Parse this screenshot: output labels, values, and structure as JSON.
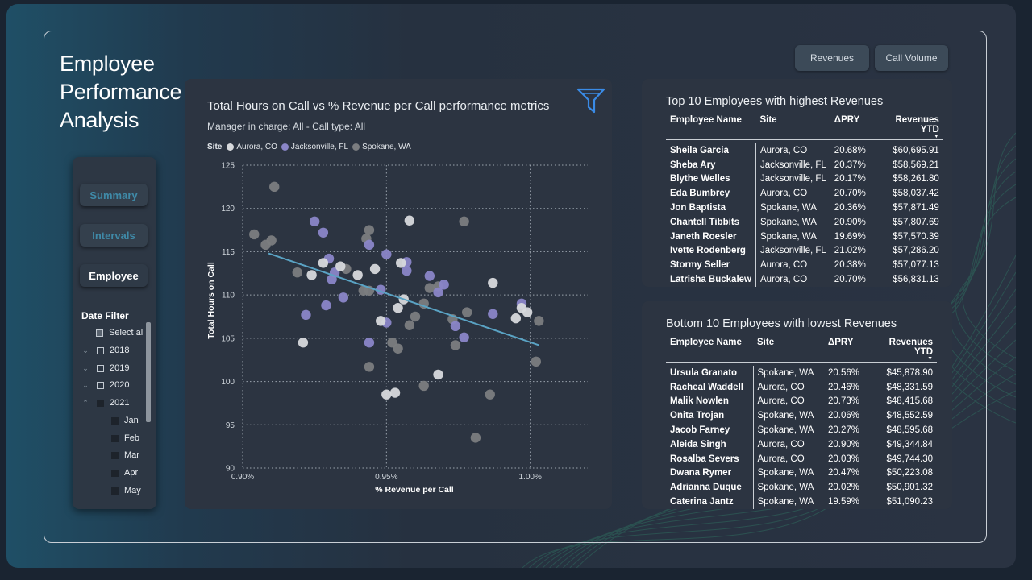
{
  "page": {
    "title_lines": [
      "Employee",
      "Performance",
      "Analysis"
    ]
  },
  "toolbar": {
    "revenues_label": "Revenues",
    "call_volume_label": "Call Volume"
  },
  "nav": {
    "summary_label": "Summary",
    "intervals_label": "Intervals",
    "employee_label": "Employee"
  },
  "date_filter": {
    "title": "Date Filter",
    "select_all": "Select all",
    "years": [
      "2018",
      "2019",
      "2020",
      "2021"
    ],
    "months": [
      "Jan",
      "Feb",
      "Mar",
      "Apr",
      "May"
    ]
  },
  "chart": {
    "title": "Total Hours on Call vs % Revenue per Call performance metrics",
    "subtitle": "Manager in charge: All - Call type: All",
    "legend_title": "Site",
    "icons": {
      "filter": "funnel-icon"
    }
  },
  "chart_data": {
    "type": "scatter",
    "xlabel": "% Revenue per Call",
    "ylabel": "Total Hours on Call",
    "xlim": [
      0.9,
      1.02
    ],
    "ylim": [
      90,
      125
    ],
    "x_ticks": [
      0.9,
      0.95,
      1.0
    ],
    "x_tick_labels": [
      "0.90%",
      "0.95%",
      "1.00%"
    ],
    "y_ticks": [
      90,
      95,
      100,
      105,
      110,
      115,
      120,
      125
    ],
    "y_tick_labels": [
      "90",
      "95",
      "100",
      "105",
      "110",
      "115",
      "120",
      "125"
    ],
    "grid": true,
    "legend_position": "top-left",
    "trend_line": {
      "x": [
        0.909,
        1.003
      ],
      "y": [
        114.8,
        104.2
      ],
      "color": "#5aa3c4"
    },
    "series": [
      {
        "name": "Aurora, CO",
        "color": "#d7d9dc",
        "points": [
          [
            0.924,
            112.3
          ],
          [
            0.928,
            113.7
          ],
          [
            0.934,
            113.3
          ],
          [
            0.94,
            112.3
          ],
          [
            0.946,
            113.0
          ],
          [
            0.948,
            107.0
          ],
          [
            0.954,
            108.5
          ],
          [
            0.956,
            109.5
          ],
          [
            0.955,
            113.7
          ],
          [
            0.958,
            118.6
          ],
          [
            0.921,
            104.5
          ],
          [
            0.95,
            98.5
          ],
          [
            0.953,
            98.7
          ],
          [
            0.968,
            100.8
          ],
          [
            0.987,
            111.4
          ],
          [
            0.995,
            107.3
          ],
          [
            0.997,
            108.5
          ],
          [
            0.999,
            108.0
          ]
        ]
      },
      {
        "name": "Jacksonville, FL",
        "color": "#8a86c8",
        "points": [
          [
            0.925,
            118.5
          ],
          [
            0.928,
            117.2
          ],
          [
            0.93,
            114.2
          ],
          [
            0.931,
            111.8
          ],
          [
            0.932,
            112.6
          ],
          [
            0.929,
            108.8
          ],
          [
            0.935,
            109.7
          ],
          [
            0.944,
            115.8
          ],
          [
            0.948,
            110.6
          ],
          [
            0.95,
            114.7
          ],
          [
            0.957,
            113.8
          ],
          [
            0.957,
            112.8
          ],
          [
            0.95,
            106.8
          ],
          [
            0.944,
            104.5
          ],
          [
            0.965,
            112.2
          ],
          [
            0.968,
            110.3
          ],
          [
            0.97,
            111.2
          ],
          [
            0.974,
            106.4
          ],
          [
            0.977,
            105.1
          ],
          [
            0.987,
            107.8
          ],
          [
            0.997,
            109.0
          ],
          [
            0.922,
            107.7
          ]
        ]
      },
      {
        "name": "Spokane, WA",
        "color": "#7b7d80",
        "points": [
          [
            0.904,
            117.0
          ],
          [
            0.911,
            122.5
          ],
          [
            0.908,
            115.8
          ],
          [
            0.91,
            116.3
          ],
          [
            0.919,
            112.6
          ],
          [
            0.936,
            113.0
          ],
          [
            0.944,
            117.5
          ],
          [
            0.943,
            116.5
          ],
          [
            0.944,
            110.5
          ],
          [
            0.942,
            110.5
          ],
          [
            0.952,
            104.5
          ],
          [
            0.954,
            103.8
          ],
          [
            0.958,
            106.5
          ],
          [
            0.96,
            107.5
          ],
          [
            0.963,
            109.0
          ],
          [
            0.965,
            110.8
          ],
          [
            0.968,
            111.0
          ],
          [
            0.973,
            107.2
          ],
          [
            0.977,
            118.5
          ],
          [
            0.978,
            108.0
          ],
          [
            0.974,
            104.2
          ],
          [
            0.944,
            101.7
          ],
          [
            0.963,
            99.5
          ],
          [
            0.986,
            98.5
          ],
          [
            0.981,
            93.5
          ],
          [
            1.002,
            102.3
          ],
          [
            1.003,
            107.0
          ]
        ]
      }
    ]
  },
  "top_table": {
    "title": "Top 10 Employees with highest Revenues",
    "columns": [
      "Employee Name",
      "Site",
      "ΔPRY",
      "Revenues YTD"
    ],
    "rows": [
      [
        "Sheila Garcia",
        "Aurora, CO",
        "20.68%",
        "$60,695.91"
      ],
      [
        "Sheba Ary",
        "Jacksonville, FL",
        "20.37%",
        "$58,569.21"
      ],
      [
        "Blythe Welles",
        "Jacksonville, FL",
        "20.17%",
        "$58,261.80"
      ],
      [
        "Eda Bumbrey",
        "Aurora, CO",
        "20.70%",
        "$58,037.42"
      ],
      [
        "Jon Baptista",
        "Spokane, WA",
        "20.36%",
        "$57,871.49"
      ],
      [
        "Chantell Tibbits",
        "Spokane, WA",
        "20.90%",
        "$57,807.69"
      ],
      [
        "Janeth Roesler",
        "Spokane, WA",
        "19.69%",
        "$57,570.39"
      ],
      [
        "Ivette Rodenberg",
        "Jacksonville, FL",
        "21.02%",
        "$57,286.20"
      ],
      [
        "Stormy Seller",
        "Aurora, CO",
        "20.38%",
        "$57,077.13"
      ],
      [
        "Latrisha Buckalew",
        "Aurora, CO",
        "20.70%",
        "$56,831.13"
      ]
    ]
  },
  "bottom_table": {
    "title": "Bottom 10 Employees with lowest Revenues",
    "columns": [
      "Employee Name",
      "Site",
      "ΔPRY",
      "Revenues YTD"
    ],
    "rows": [
      [
        "Ursula Granato",
        "Spokane, WA",
        "20.56%",
        "$45,878.90"
      ],
      [
        "Racheal Waddell",
        "Aurora, CO",
        "20.46%",
        "$48,331.59"
      ],
      [
        "Malik Nowlen",
        "Aurora, CO",
        "20.73%",
        "$48,415.68"
      ],
      [
        "Onita Trojan",
        "Spokane, WA",
        "20.06%",
        "$48,552.59"
      ],
      [
        "Jacob Farney",
        "Spokane, WA",
        "20.27%",
        "$48,595.68"
      ],
      [
        "Aleida Singh",
        "Aurora, CO",
        "20.90%",
        "$49,344.84"
      ],
      [
        "Rosalba Severs",
        "Aurora, CO",
        "20.03%",
        "$49,744.30"
      ],
      [
        "Dwana Rymer",
        "Spokane, WA",
        "20.47%",
        "$50,223.08"
      ],
      [
        "Adrianna Duque",
        "Spokane, WA",
        "20.02%",
        "$50,901.32"
      ],
      [
        "Caterina Jantz",
        "Spokane, WA",
        "19.59%",
        "$51,090.23"
      ]
    ]
  }
}
